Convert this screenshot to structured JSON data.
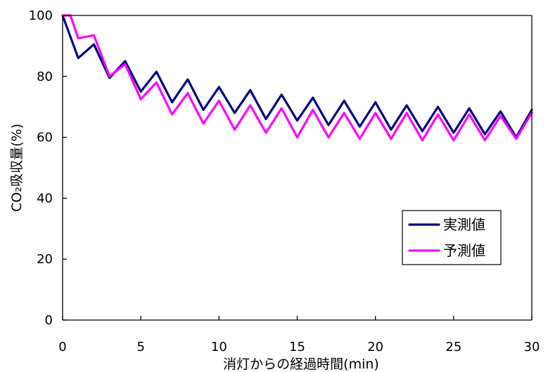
{
  "chart_data": {
    "type": "line",
    "title": "",
    "xlabel": "消灯からの経過時間(min)",
    "ylabel": "CO₂吸収量(%)",
    "xlim": [
      0,
      30
    ],
    "ylim": [
      0,
      100
    ],
    "xticks": [
      0,
      5,
      10,
      15,
      20,
      25,
      30
    ],
    "yticks": [
      0,
      20,
      40,
      60,
      80,
      100
    ],
    "grid": false,
    "legend_position": "bottom-right",
    "series": [
      {
        "name": "実測値",
        "color": "#000080",
        "points": [
          [
            0,
            100
          ],
          [
            1,
            86
          ],
          [
            2,
            90.5
          ],
          [
            3,
            79.5
          ],
          [
            4,
            85
          ],
          [
            5,
            75
          ],
          [
            6,
            81.5
          ],
          [
            7,
            71.5
          ],
          [
            8,
            79
          ],
          [
            9,
            69
          ],
          [
            10,
            76.5
          ],
          [
            11,
            68
          ],
          [
            12,
            75.5
          ],
          [
            13,
            66
          ],
          [
            14,
            74
          ],
          [
            15,
            65.5
          ],
          [
            16,
            73
          ],
          [
            17,
            64
          ],
          [
            18,
            72
          ],
          [
            19,
            63.5
          ],
          [
            20,
            71.5
          ],
          [
            21,
            62.5
          ],
          [
            22,
            70.5
          ],
          [
            23,
            62
          ],
          [
            24,
            70
          ],
          [
            25,
            61.5
          ],
          [
            26,
            69.5
          ],
          [
            27,
            61
          ],
          [
            28,
            68.5
          ],
          [
            29,
            60
          ],
          [
            30,
            69
          ]
        ]
      },
      {
        "name": "予測値",
        "color": "#FF00FF",
        "points": [
          [
            0,
            100
          ],
          [
            0.5,
            100
          ],
          [
            1,
            92.5
          ],
          [
            2,
            93.5
          ],
          [
            3,
            80
          ],
          [
            4,
            84
          ],
          [
            5,
            72.5
          ],
          [
            6,
            78
          ],
          [
            7,
            67.5
          ],
          [
            8,
            74.5
          ],
          [
            9,
            64.5
          ],
          [
            10,
            72
          ],
          [
            11,
            62.5
          ],
          [
            12,
            70.5
          ],
          [
            13,
            61.5
          ],
          [
            14,
            69.5
          ],
          [
            15,
            60
          ],
          [
            16,
            69
          ],
          [
            17,
            60
          ],
          [
            18,
            68
          ],
          [
            19,
            59.5
          ],
          [
            20,
            68
          ],
          [
            21,
            59.5
          ],
          [
            22,
            68
          ],
          [
            23,
            59
          ],
          [
            24,
            67.5
          ],
          [
            25,
            59
          ],
          [
            26,
            67.5
          ],
          [
            27,
            59
          ],
          [
            28,
            67
          ],
          [
            29,
            59.5
          ],
          [
            30,
            68
          ]
        ]
      }
    ]
  }
}
